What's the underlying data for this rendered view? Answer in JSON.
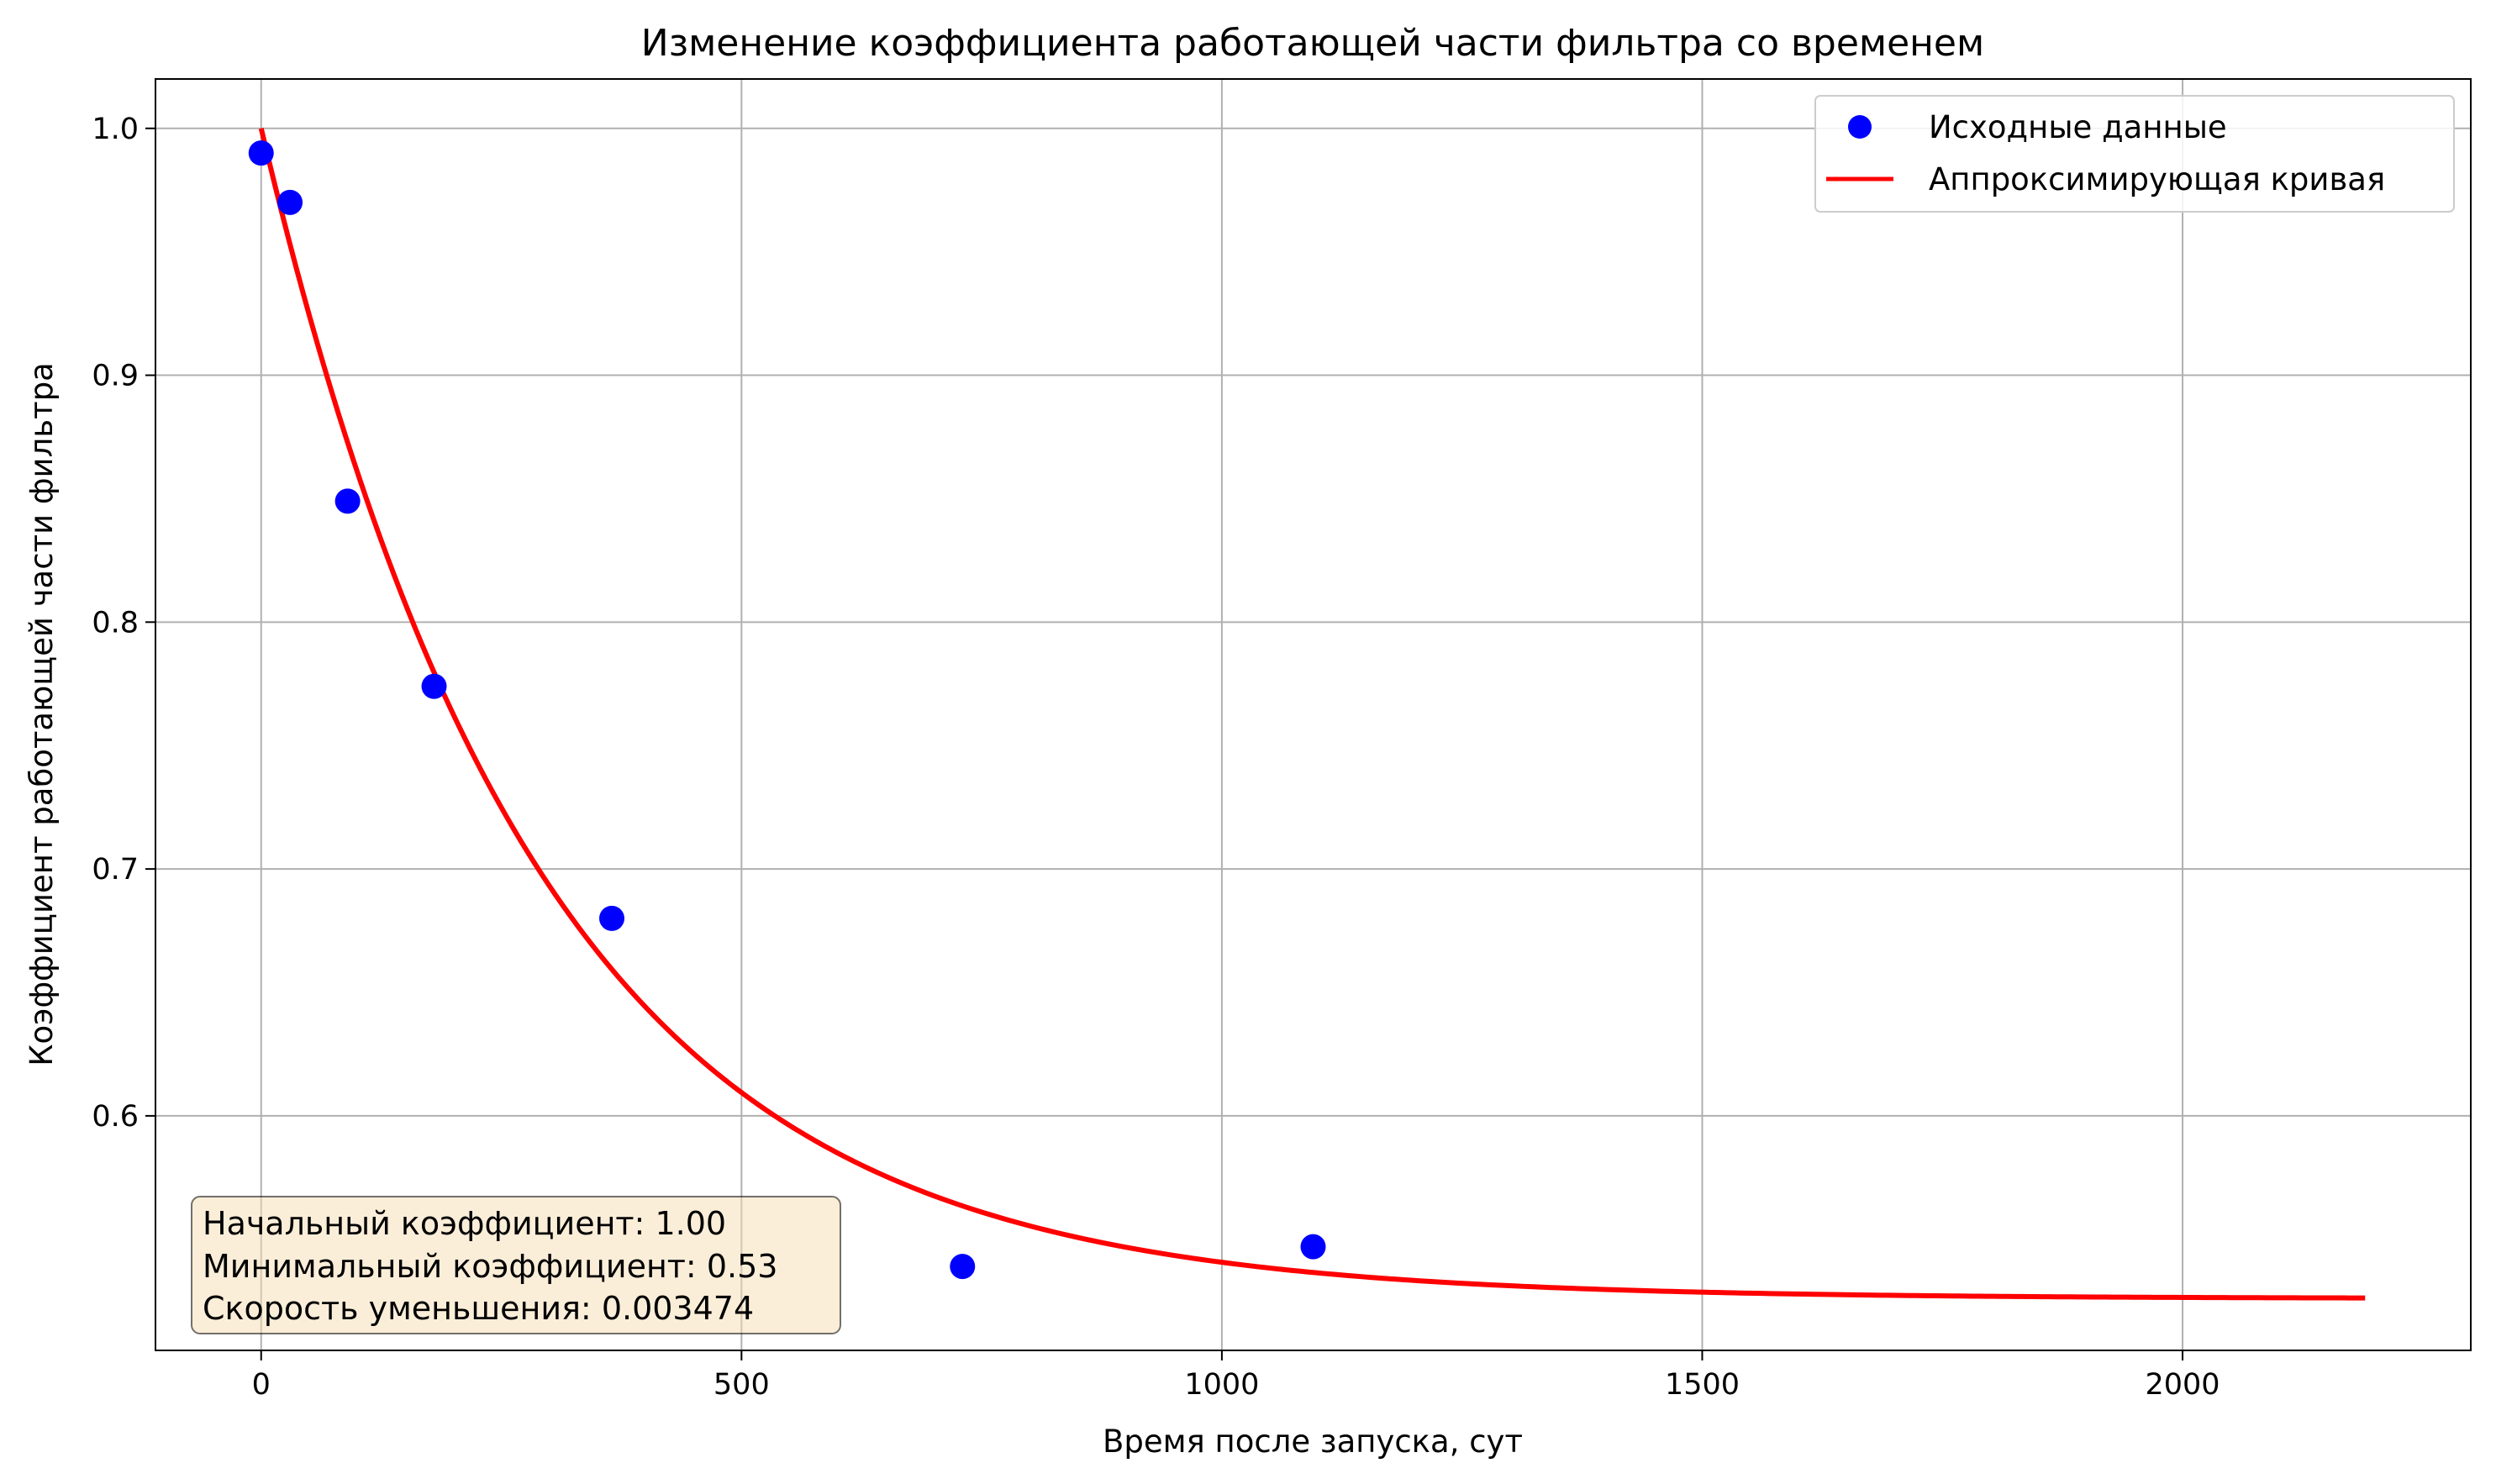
{
  "chart_data": {
    "type": "scatter",
    "title": "Изменение коэффициента работающей части фильтра со временем",
    "xlabel": "Время после запуска, сут",
    "ylabel": "Коэффициент работающей части фильтра",
    "xlim": [
      -110,
      2300
    ],
    "ylim": [
      0.505,
      1.02
    ],
    "x_ticks": [
      0,
      500,
      1000,
      1500,
      2000
    ],
    "x_tick_labels": [
      "0",
      "500",
      "1000",
      "1500",
      "2000"
    ],
    "y_ticks": [
      0.6,
      0.7,
      0.8,
      0.9,
      1.0
    ],
    "y_tick_labels": [
      "0.6",
      "0.7",
      "0.8",
      "0.9",
      "1.0"
    ],
    "grid": true,
    "legend_position": "top-right",
    "series": [
      {
        "name": "Исходные данные",
        "kind": "scatter",
        "color": "#0000ff",
        "x": [
          0,
          30,
          90,
          180,
          365,
          730,
          1095
        ],
        "y": [
          0.99,
          0.97,
          0.849,
          0.774,
          0.68,
          0.539,
          0.547
        ]
      },
      {
        "name": "Аппроксимирующая кривая",
        "kind": "line",
        "color": "#ff0000",
        "function": {
          "form": "exponential_decay",
          "k0": 1.0,
          "kmin": 0.526,
          "rate": 0.003474,
          "x_start": 0,
          "x_end": 2190
        }
      }
    ],
    "annotations": [
      "Начальный коэффициент: 1.00",
      "Минимальный коэффициент: 0.53",
      "Скорость уменьшения: 0.003474"
    ]
  }
}
